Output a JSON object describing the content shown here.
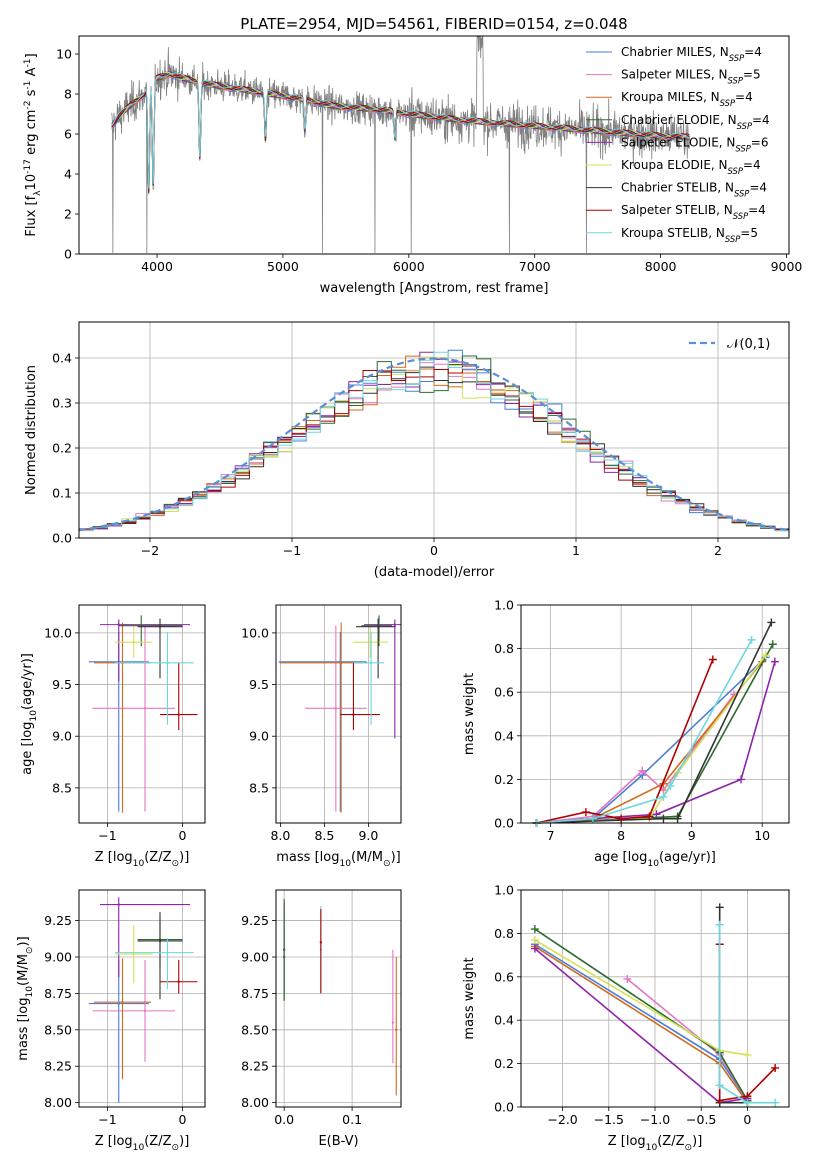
{
  "figure": {
    "title": "PLATE=2954, MJD=54561, FIBERID=0154, z=0.048"
  },
  "models": [
    {
      "label": "Chabrier MILES, N$_{SSP}$=4",
      "name": "Chabrier MILES",
      "nssp": 4,
      "color": "#4a7fd4"
    },
    {
      "label": "Salpeter MILES, N$_{SSP}$=5",
      "name": "Salpeter MILES",
      "nssp": 5,
      "color": "#e377c2"
    },
    {
      "label": "Kroupa MILES, N$_{SSP}$=4",
      "name": "Kroupa MILES",
      "nssp": 4,
      "color": "#d2691e"
    },
    {
      "label": "Chabrier ELODIE, N$_{SSP}$=4",
      "name": "Chabrier ELODIE",
      "nssp": 4,
      "color": "#2e6b2e"
    },
    {
      "label": "Salpeter ELODIE, N$_{SSP}$=6",
      "name": "Salpeter ELODIE",
      "nssp": 6,
      "color": "#8e24aa"
    },
    {
      "label": "Kroupa ELODIE, N$_{SSP}$=4",
      "name": "Kroupa ELODIE",
      "nssp": 4,
      "color": "#d4e157"
    },
    {
      "label": "Chabrier STELIB, N$_{SSP}$=4",
      "name": "Chabrier STELIB",
      "nssp": 4,
      "color": "#333333"
    },
    {
      "label": "Salpeter STELIB, N$_{SSP}$=4",
      "name": "Salpeter STELIB",
      "nssp": 4,
      "color": "#b00000"
    },
    {
      "label": "Kroupa STELIB, N$_{SSP}$=5",
      "name": "Kroupa STELIB",
      "nssp": 5,
      "color": "#6dd6e0"
    }
  ],
  "chart_data": [
    {
      "type": "line",
      "panel": "spectrum",
      "title": "PLATE=2954, MJD=54561, FIBERID=0154, z=0.048",
      "xlabel": "wavelength [Angstrom, rest frame]",
      "ylabel": "Flux [f$_\\lambda$10$^{-17}$ erg cm$^{-2}$ s$^{-1}$ A$^{-1}$]",
      "xlim": [
        3380,
        9020
      ],
      "ylim": [
        0,
        10.9
      ],
      "xticks": [
        4000,
        5000,
        6000,
        7000,
        8000,
        9000
      ],
      "yticks": [
        0,
        2,
        4,
        6,
        8,
        10
      ],
      "grid": false,
      "legend": "upper right",
      "data_color": "#808080",
      "continuum": {
        "x": [
          3640,
          3700,
          3800,
          3900,
          4000,
          4100,
          4200,
          4400,
          4600,
          4800,
          5000,
          5200,
          5400,
          5600,
          5800,
          6000,
          6200,
          6400,
          6600,
          6800,
          7000,
          7200,
          7400,
          7600,
          7800,
          8000,
          8200
        ],
        "y": [
          6.4,
          6.9,
          7.5,
          8.0,
          8.8,
          9.0,
          8.8,
          8.5,
          8.3,
          8.1,
          7.9,
          7.7,
          7.4,
          7.3,
          7.2,
          7.0,
          6.85,
          6.7,
          6.6,
          6.5,
          6.4,
          6.3,
          6.2,
          6.1,
          6.0,
          5.9,
          5.85
        ]
      },
      "absorption_dips": [
        {
          "x": 3934,
          "y": 3.1
        },
        {
          "x": 3969,
          "y": 3.3
        },
        {
          "x": 4340,
          "y": 4.8
        },
        {
          "x": 4861,
          "y": 5.7
        },
        {
          "x": 5175,
          "y": 6.2
        },
        {
          "x": 5890,
          "y": 5.8
        }
      ],
      "data_spikes_to_zero": [
        3650,
        3920,
        5315,
        5730,
        6020,
        6800,
        7410
      ]
    },
    {
      "type": "histogram",
      "panel": "residuals",
      "xlabel": "(data-model)/error",
      "ylabel": "Normed distribution",
      "xlim": [
        -2.5,
        2.5
      ],
      "ylim": [
        0,
        0.48
      ],
      "xticks": [
        -2,
        -1,
        0,
        1,
        2
      ],
      "yticks": [
        0.0,
        0.1,
        0.2,
        0.3,
        0.4
      ],
      "grid": true,
      "legend": "upper right",
      "bin_width": 0.1,
      "reference": {
        "name": "$\\mathcal{N}(0,1)$",
        "mean": 0,
        "sigma": 1,
        "color": "#5b8fd6"
      }
    },
    {
      "type": "errorbar",
      "panel": "age-vs-Z",
      "xlabel": "Z [log$_{10}$(Z/Z$_\\odot$)]",
      "ylabel": "age  [log$_{10}$(age/yr)]",
      "xlim": [
        -1.38,
        0.3
      ],
      "ylim": [
        8.16,
        10.27
      ],
      "xticks": [
        -1,
        0
      ],
      "yticks": [
        8.5,
        9.0,
        9.5,
        10.0
      ],
      "grid": true,
      "points": [
        {
          "x": -0.85,
          "y": 9.72,
          "xerr": [
            0.4,
            0.4
          ],
          "yerr": [
            1.45,
            0.29
          ]
        },
        {
          "x": -0.5,
          "y": 9.27,
          "xerr": [
            0.7,
            0.4
          ],
          "yerr": [
            1.0,
            0.8
          ]
        },
        {
          "x": -0.8,
          "y": 9.71,
          "xerr": [
            0.38,
            0.38
          ],
          "yerr": [
            1.45,
            0.39
          ]
        },
        {
          "x": -0.55,
          "y": 10.07,
          "xerr": [
            0.3,
            0.55
          ],
          "yerr": [
            0.2,
            0.1
          ]
        },
        {
          "x": -0.85,
          "y": 10.08,
          "xerr": [
            0.25,
            0.95
          ],
          "yerr": [
            0.55,
            0.05
          ]
        },
        {
          "x": -0.65,
          "y": 9.91,
          "xerr": [
            0.25,
            0.25
          ],
          "yerr": [
            0.15,
            0.15
          ]
        },
        {
          "x": -0.3,
          "y": 10.06,
          "xerr": [
            0.3,
            0.3
          ],
          "yerr": [
            0.5,
            0.08
          ]
        },
        {
          "x": -0.05,
          "y": 9.21,
          "xerr": [
            0.25,
            0.25
          ],
          "yerr": [
            0.15,
            0.5
          ]
        },
        {
          "x": -0.2,
          "y": 9.71,
          "xerr": [
            0.7,
            0.35
          ],
          "yerr": [
            0.6,
            0.3
          ]
        }
      ]
    },
    {
      "type": "errorbar",
      "panel": "age-vs-mass",
      "xlabel": "mass [log$_{10}$(M/M$_\\odot$)]",
      "xlim": [
        7.95,
        9.37
      ],
      "ylim": [
        8.16,
        10.27
      ],
      "xticks": [
        8.0,
        8.5,
        9.0
      ],
      "yticks": [
        8.5,
        9.0,
        9.5,
        10.0
      ],
      "grid": true,
      "points": [
        {
          "x": 8.68,
          "y": 9.72,
          "xerr": [
            0.7,
            0.3
          ],
          "yerr": [
            1.45,
            0.29
          ]
        },
        {
          "x": 8.63,
          "y": 9.27,
          "xerr": [
            0.35,
            0.35
          ],
          "yerr": [
            1.0,
            0.8
          ]
        },
        {
          "x": 8.69,
          "y": 9.71,
          "xerr": [
            0.7,
            0.3
          ],
          "yerr": [
            1.45,
            0.39
          ]
        },
        {
          "x": 9.12,
          "y": 10.07,
          "xerr": [
            0.2,
            0.15
          ],
          "yerr": [
            0.2,
            0.1
          ]
        },
        {
          "x": 9.3,
          "y": 10.08,
          "xerr": [
            0.35,
            0.1
          ],
          "yerr": [
            1.1,
            0.05
          ]
        },
        {
          "x": 9.02,
          "y": 9.91,
          "xerr": [
            0.2,
            0.2
          ],
          "yerr": [
            0.15,
            0.15
          ]
        },
        {
          "x": 9.11,
          "y": 10.06,
          "xerr": [
            0.25,
            0.2
          ],
          "yerr": [
            0.5,
            0.08
          ]
        },
        {
          "x": 8.83,
          "y": 9.21,
          "xerr": [
            0.15,
            0.3
          ],
          "yerr": [
            0.15,
            0.5
          ]
        },
        {
          "x": 9.03,
          "y": 9.71,
          "xerr": [
            0.2,
            0.15
          ],
          "yerr": [
            0.6,
            0.3
          ]
        }
      ]
    },
    {
      "type": "line",
      "panel": "mass-weight-vs-age",
      "xlabel": "age  [log$_{10}$(age/yr)]",
      "ylabel": "mass weight",
      "xlim": [
        6.58,
        10.38
      ],
      "ylim": [
        0,
        1.0
      ],
      "xticks": [
        7,
        8,
        9,
        10
      ],
      "yticks": [
        0.0,
        0.2,
        0.4,
        0.6,
        0.8,
        1.0
      ],
      "grid": true,
      "series": [
        {
          "x": [
            6.8,
            7.6,
            8.3,
            10.05
          ],
          "y": [
            0.0,
            0.02,
            0.22,
            0.76
          ]
        },
        {
          "x": [
            6.8,
            7.6,
            8.3,
            8.6,
            9.6
          ],
          "y": [
            0.0,
            0.03,
            0.24,
            0.15,
            0.59
          ]
        },
        {
          "x": [
            6.8,
            7.6,
            8.6,
            10.0
          ],
          "y": [
            0.0,
            0.02,
            0.18,
            0.74
          ]
        },
        {
          "x": [
            6.8,
            8.8,
            10.15
          ],
          "y": [
            0.0,
            0.03,
            0.82
          ]
        },
        {
          "x": [
            6.8,
            7.6,
            8.5,
            9.7,
            10.18
          ],
          "y": [
            0.0,
            0.02,
            0.04,
            0.2,
            0.74
          ]
        },
        {
          "x": [
            6.8,
            8.4,
            8.8,
            10.05
          ],
          "y": [
            0.0,
            0.02,
            0.23,
            0.77
          ]
        },
        {
          "x": [
            6.8,
            8.6,
            8.8,
            10.13
          ],
          "y": [
            0.0,
            0.02,
            0.02,
            0.92
          ]
        },
        {
          "x": [
            6.8,
            7.5,
            8.0,
            8.4,
            9.3
          ],
          "y": [
            0.0,
            0.05,
            0.02,
            0.03,
            0.75
          ]
        },
        {
          "x": [
            6.8,
            7.6,
            8.6,
            8.7,
            9.85
          ],
          "y": [
            0.0,
            0.02,
            0.12,
            0.17,
            0.84
          ]
        }
      ]
    },
    {
      "type": "errorbar",
      "panel": "mass-vs-Z",
      "xlabel": "Z [log$_{10}$(Z/Z$_\\odot$)]",
      "ylabel": "mass [log$_{10}$(M/M$_\\odot$)]",
      "xlim": [
        -1.38,
        0.3
      ],
      "ylim": [
        7.97,
        9.46
      ],
      "xticks": [
        -1,
        0
      ],
      "yticks": [
        8.0,
        8.25,
        8.5,
        8.75,
        9.0,
        9.25
      ],
      "grid": true,
      "points": [
        {
          "x": -0.85,
          "y": 8.68,
          "xerr": [
            0.4,
            0.4
          ],
          "yerr": [
            0.68,
            0.3
          ]
        },
        {
          "x": -0.5,
          "y": 8.63,
          "xerr": [
            0.7,
            0.4
          ],
          "yerr": [
            0.35,
            0.35
          ]
        },
        {
          "x": -0.8,
          "y": 8.69,
          "xerr": [
            0.38,
            0.38
          ],
          "yerr": [
            0.53,
            0.3
          ]
        },
        {
          "x": -0.3,
          "y": 9.12,
          "xerr": [
            0.3,
            0.3
          ],
          "yerr": [
            0.2,
            0.15
          ]
        },
        {
          "x": -0.85,
          "y": 9.36,
          "xerr": [
            0.25,
            0.95
          ],
          "yerr": [
            0.5,
            0.05
          ]
        },
        {
          "x": -0.65,
          "y": 9.02,
          "xerr": [
            0.25,
            0.25
          ],
          "yerr": [
            0.2,
            0.2
          ]
        },
        {
          "x": -0.3,
          "y": 9.11,
          "xerr": [
            0.3,
            0.3
          ],
          "yerr": [
            0.4,
            0.2
          ]
        },
        {
          "x": -0.05,
          "y": 8.83,
          "xerr": [
            0.25,
            0.25
          ],
          "yerr": [
            0.08,
            0.15
          ]
        },
        {
          "x": -0.2,
          "y": 9.03,
          "xerr": [
            0.7,
            0.35
          ],
          "yerr": [
            0.25,
            0.1
          ]
        }
      ]
    },
    {
      "type": "errorbar",
      "panel": "mass-vs-EBV",
      "xlabel": "E(B-V)",
      "xlim": [
        -0.012,
        0.172
      ],
      "ylim": [
        7.97,
        9.46
      ],
      "xticks": [
        0.0,
        0.1
      ],
      "yticks": [
        8.0,
        8.25,
        8.5,
        8.75,
        9.0,
        9.25
      ],
      "grid": true,
      "points": [
        {
          "x": 0.0,
          "y": 9.05,
          "yerr": [
            0.35,
            0.33
          ]
        },
        {
          "x": 0.0,
          "y": 9.0,
          "yerr": [
            0.3,
            0.4
          ]
        },
        {
          "x": 0.054,
          "y": 9.05,
          "yerr": [
            0.3,
            0.3
          ]
        },
        {
          "x": 0.054,
          "y": 9.1,
          "yerr": [
            0.35,
            0.23
          ]
        },
        {
          "x": 0.16,
          "y": 8.55,
          "yerr": [
            0.28,
            0.5
          ]
        },
        {
          "x": 0.165,
          "y": 8.5,
          "yerr": [
            0.45,
            0.5
          ]
        }
      ]
    },
    {
      "type": "line",
      "panel": "mass-weight-vs-Z",
      "xlabel": "Z [log$_{10}$(Z/Z$_\\odot$)]",
      "ylabel": "mass weight",
      "xlim": [
        -2.45,
        0.45
      ],
      "ylim": [
        0,
        1.0
      ],
      "xticks": [
        -2.0,
        -1.5,
        -1.0,
        -0.5,
        0.0
      ],
      "yticks": [
        0.0,
        0.2,
        0.4,
        0.6,
        0.8,
        1.0
      ],
      "grid": true,
      "series": [
        {
          "x": [
            -2.3,
            -0.3,
            0.0
          ],
          "y": [
            0.75,
            0.22,
            0.03
          ]
        },
        {
          "x": [
            -1.3,
            -0.3,
            0.0
          ],
          "y": [
            0.59,
            0.24,
            0.03
          ]
        },
        {
          "x": [
            -2.3,
            -0.3,
            0.0
          ],
          "y": [
            0.74,
            0.2,
            0.02
          ]
        },
        {
          "x": [
            -2.3,
            -0.3,
            0.0
          ],
          "y": [
            0.82,
            0.25,
            0.03
          ]
        },
        {
          "x": [
            -2.3,
            -0.3,
            0.0
          ],
          "y": [
            0.73,
            0.02,
            0.04
          ]
        },
        {
          "x": [
            -2.3,
            -0.3,
            0.0
          ],
          "y": [
            0.77,
            0.26,
            0.24
          ]
        },
        {
          "x": [
            -0.3,
            -0.3,
            0.0
          ],
          "y": [
            0.92,
            0.02,
            0.02
          ]
        },
        {
          "x": [
            -0.3,
            -0.3,
            0.0,
            0.3
          ],
          "y": [
            0.75,
            0.03,
            0.05,
            0.18
          ]
        },
        {
          "x": [
            -0.3,
            -0.3,
            0.0,
            0.3
          ],
          "y": [
            0.84,
            0.1,
            0.02,
            0.02
          ]
        }
      ]
    }
  ]
}
